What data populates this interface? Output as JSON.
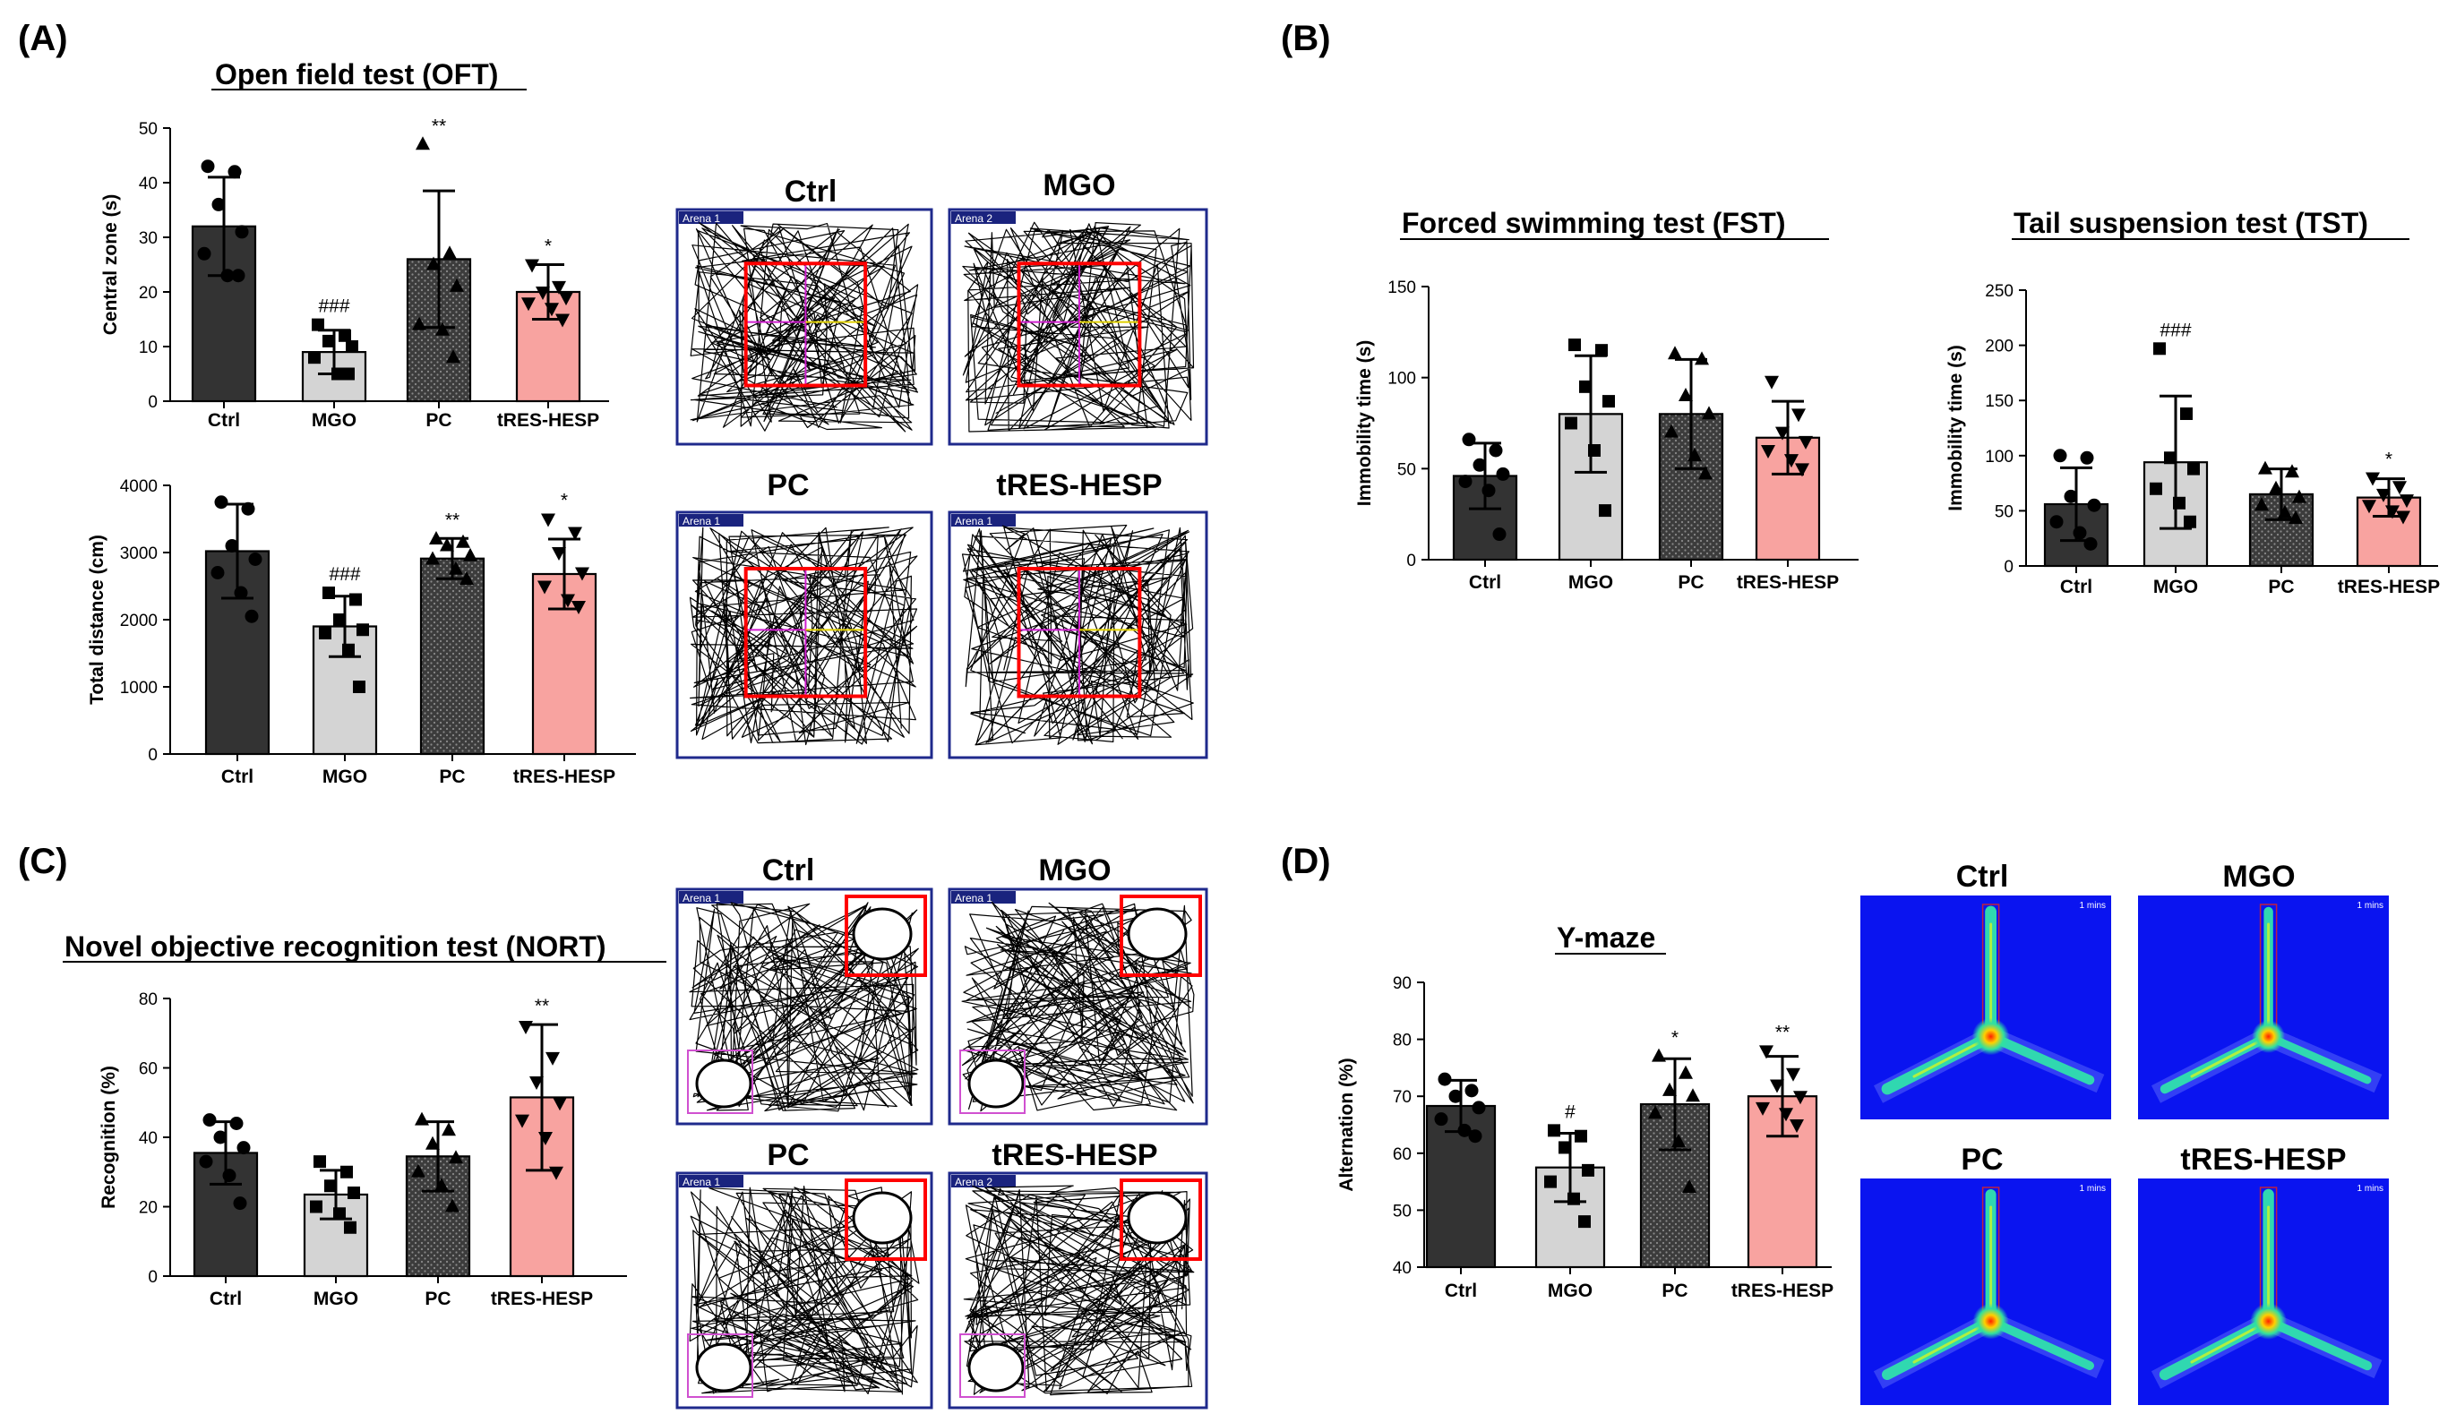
{
  "panels": {
    "A": {
      "letter": "(A)",
      "title": "Open field test (OFT)"
    },
    "B": {
      "letter": "(B)"
    },
    "C": {
      "letter": "(C)",
      "title": "Novel objective recognition test (NORT)"
    },
    "D": {
      "letter": "(D)",
      "title": "Y-maze"
    }
  },
  "colors": {
    "Ctrl": "#333333",
    "MGO": "#d4d4d4",
    "PC": "#4a4a4a",
    "tRES-HESP": "#f8a3a0",
    "track_border": "#1f2a8c",
    "zone": "#ff0000",
    "heatmap_bg": "#0a14f0"
  },
  "arena_tag": "Arena 1",
  "arena_tag_alt": "Arena 2",
  "heat_scale_label": "1 mins",
  "image_groups": {
    "A": [
      "Ctrl",
      "MGO",
      "PC",
      "tRES-HESP"
    ],
    "C": [
      "Ctrl",
      "MGO",
      "PC",
      "tRES-HESP"
    ],
    "D": [
      "Ctrl",
      "MGO",
      "PC",
      "tRES-HESP"
    ]
  },
  "chart_data": [
    {
      "id": "oft_central",
      "panel": "A",
      "type": "bar",
      "title": "",
      "xlabel": "",
      "ylabel": "Central zone (s)",
      "ylim": [
        0,
        50
      ],
      "yticks": [
        0,
        10,
        20,
        30,
        40,
        50
      ],
      "categories": [
        "Ctrl",
        "MGO",
        "PC",
        "tRES-HESP"
      ],
      "values": [
        32,
        9,
        26,
        20
      ],
      "errors": [
        9,
        4,
        12.5,
        5
      ],
      "annotations": [
        "",
        "###",
        "**",
        "*"
      ],
      "points": [
        [
          43,
          42,
          36,
          31,
          27,
          23,
          23
        ],
        [
          14,
          12,
          11,
          10,
          8,
          5,
          5
        ],
        [
          47,
          27,
          25,
          21,
          14,
          13,
          8
        ],
        [
          25,
          21,
          20,
          19,
          18,
          17,
          15
        ]
      ]
    },
    {
      "id": "oft_distance",
      "panel": "A",
      "type": "bar",
      "title": "",
      "xlabel": "",
      "ylabel": "Total distance (cm)",
      "ylim": [
        0,
        4000
      ],
      "yticks": [
        0,
        1000,
        2000,
        3000,
        4000
      ],
      "categories": [
        "Ctrl",
        "MGO",
        "PC",
        "tRES-HESP"
      ],
      "values": [
        3020,
        1900,
        2910,
        2680
      ],
      "errors": [
        700,
        450,
        300,
        520
      ],
      "annotations": [
        "",
        "###",
        "**",
        "*"
      ],
      "points": [
        [
          3750,
          3650,
          3100,
          2900,
          2700,
          2400,
          2050
        ],
        [
          2400,
          2300,
          2000,
          1850,
          1800,
          1550,
          1000
        ],
        [
          3200,
          3150,
          3100,
          2950,
          2900,
          2750,
          2600
        ],
        [
          3500,
          3300,
          3000,
          2700,
          2500,
          2300,
          2200
        ]
      ]
    },
    {
      "id": "fst",
      "panel": "B",
      "type": "bar",
      "title": "Forced swimming test (FST)",
      "xlabel": "",
      "ylabel": "Immobility time (s)",
      "ylim": [
        0,
        150
      ],
      "yticks": [
        0,
        50,
        100,
        150
      ],
      "categories": [
        "Ctrl",
        "MGO",
        "PC",
        "tRES-HESP"
      ],
      "values": [
        46,
        80,
        80,
        67
      ],
      "errors": [
        18,
        32,
        30,
        20
      ],
      "annotations": [
        "",
        "",
        "",
        ""
      ],
      "points": [
        [
          66,
          60,
          52,
          47,
          43,
          38,
          14
        ],
        [
          118,
          115,
          95,
          87,
          75,
          60,
          27
        ],
        [
          113,
          110,
          90,
          80,
          70,
          57,
          47
        ],
        [
          98,
          80,
          70,
          65,
          60,
          55,
          50
        ]
      ]
    },
    {
      "id": "tst",
      "panel": "B",
      "type": "bar",
      "title": "Tail suspension test (TST)",
      "xlabel": "",
      "ylabel": "Immobility time (s)",
      "ylim": [
        0,
        250
      ],
      "yticks": [
        0,
        50,
        100,
        150,
        200,
        250
      ],
      "categories": [
        "Ctrl",
        "MGO",
        "PC",
        "tRES-HESP"
      ],
      "values": [
        56,
        94,
        65,
        62
      ],
      "errors": [
        33,
        60,
        23,
        17
      ],
      "annotations": [
        "",
        "###",
        "",
        "*"
      ],
      "points": [
        [
          100,
          98,
          63,
          55,
          40,
          30,
          20
        ],
        [
          197,
          138,
          98,
          88,
          70,
          57,
          40
        ],
        [
          88,
          85,
          70,
          62,
          55,
          48,
          43
        ],
        [
          80,
          72,
          65,
          60,
          55,
          50,
          45
        ]
      ]
    },
    {
      "id": "nort",
      "panel": "C",
      "type": "bar",
      "title": "",
      "xlabel": "",
      "ylabel": "Recognition (%)",
      "ylim": [
        0,
        80
      ],
      "yticks": [
        0,
        20,
        40,
        60,
        80
      ],
      "categories": [
        "Ctrl",
        "MGO",
        "PC",
        "tRES-HESP"
      ],
      "values": [
        35.5,
        23.5,
        34.5,
        51.5
      ],
      "errors": [
        9,
        7,
        10,
        21
      ],
      "annotations": [
        "",
        "",
        "",
        "**"
      ],
      "points": [
        [
          45,
          44,
          40,
          37,
          33,
          29,
          21
        ],
        [
          33,
          30,
          26,
          24,
          20,
          18,
          14
        ],
        [
          45,
          42,
          38,
          34,
          30,
          26,
          20
        ],
        [
          72,
          63,
          56,
          50,
          45,
          40,
          30
        ]
      ]
    },
    {
      "id": "ymaze",
      "panel": "D",
      "type": "bar",
      "title": "Y-maze",
      "xlabel": "",
      "ylabel": "Alternation (%)",
      "ylim": [
        40,
        90
      ],
      "yticks": [
        40,
        50,
        60,
        70,
        80,
        90
      ],
      "categories": [
        "Ctrl",
        "MGO",
        "PC",
        "tRES-HESP"
      ],
      "values": [
        68.3,
        57.5,
        68.6,
        70
      ],
      "errors": [
        4.5,
        6,
        8,
        7
      ],
      "annotations": [
        "",
        "#",
        "*",
        "**"
      ],
      "points": [
        [
          73,
          71,
          70,
          68,
          66,
          64,
          63
        ],
        [
          64,
          63,
          61,
          57,
          55,
          52,
          48
        ],
        [
          77,
          74,
          71,
          70,
          67,
          62,
          54
        ],
        [
          78,
          74,
          72,
          70,
          68,
          67,
          65
        ]
      ]
    }
  ]
}
